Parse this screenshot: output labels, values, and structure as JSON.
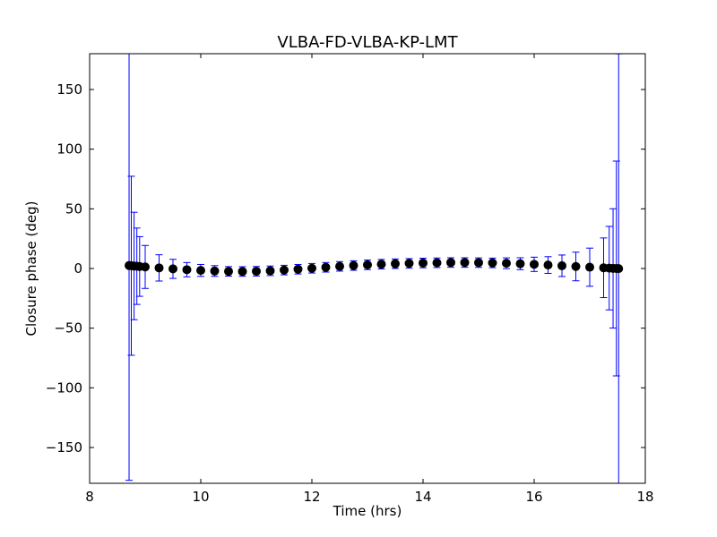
{
  "chart_data": {
    "type": "scatter",
    "title": "VLBA-FD-VLBA-KP-LMT",
    "xlabel": "Time (hrs)",
    "ylabel": "Closure phase (deg)",
    "xlim": [
      8,
      18
    ],
    "ylim": [
      -180,
      180
    ],
    "xticks": [
      8,
      10,
      12,
      14,
      16,
      18
    ],
    "xtick_labels": [
      "8",
      "10",
      "12",
      "14",
      "16",
      "18"
    ],
    "yticks": [
      150,
      100,
      50,
      0,
      -50,
      -100,
      -150
    ],
    "ytick_labels": [
      "150",
      "100",
      "50",
      "0",
      "−50",
      "−100",
      "−150"
    ],
    "grid": false,
    "legend": "none",
    "marker_color": "#000000",
    "errorbar_color": "#0000ff",
    "series": [
      {
        "x": [
          8.71,
          8.75,
          8.8,
          8.85,
          8.9,
          9.0,
          9.25,
          9.5,
          9.75,
          10.0,
          10.25,
          10.5,
          10.75,
          11.0,
          11.25,
          11.5,
          11.75,
          12.0,
          12.25,
          12.5,
          12.75,
          13.0,
          13.25,
          13.5,
          13.75,
          14.0,
          14.25,
          14.5,
          14.75,
          15.0,
          15.25,
          15.5,
          15.75,
          16.0,
          16.25,
          16.5,
          16.75,
          17.0,
          17.25,
          17.35,
          17.42,
          17.48,
          17.52
        ],
        "y": [
          2.5,
          2.3,
          2.1,
          1.9,
          1.7,
          1.3,
          0.5,
          -0.3,
          -1.0,
          -1.6,
          -2.1,
          -2.4,
          -2.5,
          -2.3,
          -1.9,
          -1.3,
          -0.6,
          0.2,
          1.0,
          1.8,
          2.5,
          3.1,
          3.6,
          4.0,
          4.3,
          4.6,
          4.8,
          5.0,
          5.0,
          4.9,
          4.7,
          4.4,
          4.0,
          3.5,
          2.9,
          2.3,
          1.7,
          1.1,
          0.6,
          0.3,
          0.1,
          0.0,
          -0.1
        ],
        "yerr": [
          180,
          75,
          45,
          32,
          25,
          18,
          11,
          8,
          6,
          5,
          4.5,
          4,
          4,
          4,
          4,
          4,
          4,
          4,
          4,
          4,
          4,
          4,
          4,
          4,
          4,
          4,
          4,
          4,
          4,
          4,
          4,
          4.5,
          5,
          6,
          7,
          9,
          12,
          16,
          25,
          35,
          50,
          90,
          180
        ]
      }
    ]
  }
}
